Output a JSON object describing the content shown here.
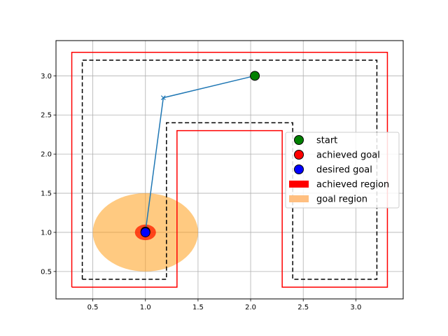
{
  "chart_data": {
    "type": "scatter",
    "title": "",
    "xlabel": "",
    "ylabel": "",
    "xlim": [
      0.15,
      3.45
    ],
    "ylim": [
      0.15,
      3.45
    ],
    "xticks": [
      0.5,
      1.0,
      1.5,
      2.0,
      2.5,
      3.0
    ],
    "yticks": [
      0.5,
      1.0,
      1.5,
      2.0,
      2.5,
      3.0
    ],
    "xtick_labels": [
      "0.5",
      "1.0",
      "1.5",
      "2.0",
      "2.5",
      "3.0"
    ],
    "ytick_labels": [
      "0.5",
      "1.0",
      "1.5",
      "2.0",
      "2.5",
      "3.0"
    ],
    "grid": true,
    "legend_position": "center-right",
    "outer_boundary": {
      "color": "#ff0000",
      "points": [
        [
          0.3,
          0.3
        ],
        [
          0.3,
          3.3
        ],
        [
          3.3,
          3.3
        ],
        [
          3.3,
          0.3
        ],
        [
          2.3,
          0.3
        ],
        [
          2.3,
          2.3
        ],
        [
          1.3,
          2.3
        ],
        [
          1.3,
          0.3
        ],
        [
          0.3,
          0.3
        ]
      ]
    },
    "inner_boundary": {
      "color": "#000000",
      "style": "dashed",
      "points": [
        [
          0.4,
          0.4
        ],
        [
          0.4,
          3.2
        ],
        [
          3.2,
          3.2
        ],
        [
          3.2,
          0.4
        ],
        [
          2.4,
          0.4
        ],
        [
          2.4,
          2.4
        ],
        [
          1.2,
          2.4
        ],
        [
          1.2,
          0.4
        ],
        [
          0.4,
          0.4
        ]
      ]
    },
    "trajectory": {
      "color": "#1f77b4",
      "points": [
        [
          2.04,
          3.0
        ],
        [
          1.17,
          2.72
        ],
        [
          1.0,
          1.01
        ]
      ],
      "waypoint_marker": "x",
      "waypoint": [
        1.17,
        2.72
      ]
    },
    "goal_region": {
      "center": [
        1.0,
        1.0
      ],
      "radius": 0.5,
      "color": "#ff9f1a",
      "opacity": 0.55
    },
    "achieved_region": {
      "center": [
        1.0,
        1.0
      ],
      "radius": 0.1,
      "color": "#ff2200",
      "opacity": 0.8
    },
    "start": {
      "x": 2.04,
      "y": 3.0,
      "color": "#008000"
    },
    "achieved_goal": {
      "x": 1.0,
      "y": 1.01,
      "color": "#ff0000"
    },
    "desired_goal": {
      "x": 1.0,
      "y": 1.0,
      "color": "#0000ff"
    },
    "legend": [
      {
        "label": "start",
        "kind": "marker",
        "color": "#008000"
      },
      {
        "label": "achieved goal",
        "kind": "marker",
        "color": "#ff0000"
      },
      {
        "label": "desired goal",
        "kind": "marker",
        "color": "#0000ff"
      },
      {
        "label": "achieved region",
        "kind": "patch",
        "color": "#ff0000"
      },
      {
        "label": "goal region",
        "kind": "patch",
        "color": "#ffbf80"
      }
    ]
  }
}
